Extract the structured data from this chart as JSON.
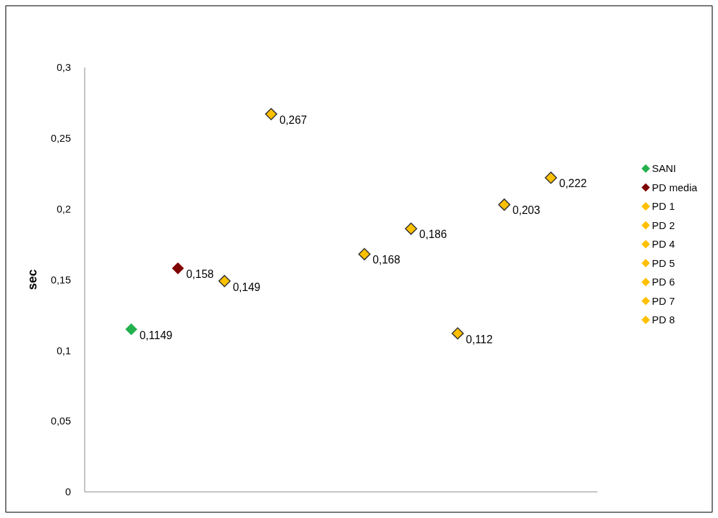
{
  "chart_data": {
    "type": "scatter",
    "ylabel": "sec",
    "categories": [
      null,
      null,
      null,
      null,
      null,
      null,
      null,
      null,
      null,
      null
    ],
    "ylim": [
      0,
      0.3
    ],
    "yticks": [
      0,
      {
        "value": 0.05,
        "label": "0,05"
      },
      {
        "value": 0.1,
        "label": "0,1"
      },
      {
        "value": 0.15,
        "label": "0,15"
      },
      {
        "value": 0.2,
        "label": "0,2"
      },
      {
        "value": 0.25,
        "label": "0,25"
      },
      {
        "value": 0.3,
        "label": "0,3"
      }
    ],
    "grid": false,
    "legend": "right",
    "marker": "diamond",
    "series": [
      {
        "name": "SANI",
        "color": "#22b14c",
        "values": [
          0.1149,
          null,
          null,
          null,
          null,
          null,
          null,
          null,
          null,
          null
        ],
        "value_labels": [
          "0,1149",
          null,
          null,
          null,
          null,
          null,
          null,
          null,
          null,
          null
        ]
      },
      {
        "name": "PD media",
        "color": "#7f0000",
        "values": [
          null,
          0.158,
          null,
          null,
          null,
          null,
          null,
          null,
          null,
          null
        ],
        "value_labels": [
          null,
          "0,158",
          null,
          null,
          null,
          null,
          null,
          null,
          null,
          null
        ]
      },
      {
        "name": "PD 1",
        "color": "#ffc000",
        "values": [
          null,
          null,
          0.149,
          null,
          null,
          null,
          null,
          null,
          null,
          null
        ],
        "value_labels": [
          null,
          null,
          "0,149",
          null,
          null,
          null,
          null,
          null,
          null,
          null
        ]
      },
      {
        "name": "PD 2",
        "color": "#ffc000",
        "values": [
          null,
          null,
          null,
          0.267,
          null,
          null,
          null,
          null,
          null,
          null
        ],
        "value_labels": [
          null,
          null,
          null,
          "0,267",
          null,
          null,
          null,
          null,
          null,
          null
        ]
      },
      {
        "name": "PD 4",
        "color": "#ffc000",
        "values": [
          null,
          null,
          null,
          null,
          null,
          0.168,
          null,
          null,
          null,
          null
        ],
        "value_labels": [
          null,
          null,
          null,
          null,
          null,
          "0,168",
          null,
          null,
          null,
          null
        ]
      },
      {
        "name": "PD 5",
        "color": "#ffc000",
        "values": [
          null,
          null,
          null,
          null,
          null,
          null,
          0.186,
          null,
          null,
          null
        ],
        "value_labels": [
          null,
          null,
          null,
          null,
          null,
          null,
          "0,186",
          null,
          null,
          null
        ]
      },
      {
        "name": "PD 6",
        "color": "#ffc000",
        "values": [
          null,
          null,
          null,
          null,
          null,
          null,
          null,
          0.112,
          null,
          null
        ],
        "value_labels": [
          null,
          null,
          null,
          null,
          null,
          null,
          null,
          "0,112",
          null,
          null
        ]
      },
      {
        "name": "PD 7",
        "color": "#ffc000",
        "values": [
          null,
          null,
          null,
          null,
          null,
          null,
          null,
          null,
          0.203,
          null
        ],
        "value_labels": [
          null,
          null,
          null,
          null,
          null,
          null,
          null,
          null,
          "0,203",
          null
        ]
      },
      {
        "name": "PD 8",
        "color": "#ffc000",
        "values": [
          null,
          null,
          null,
          null,
          null,
          null,
          null,
          null,
          null,
          0.222
        ],
        "value_labels": [
          null,
          null,
          null,
          null,
          null,
          null,
          null,
          null,
          null,
          "0,222"
        ]
      }
    ]
  }
}
